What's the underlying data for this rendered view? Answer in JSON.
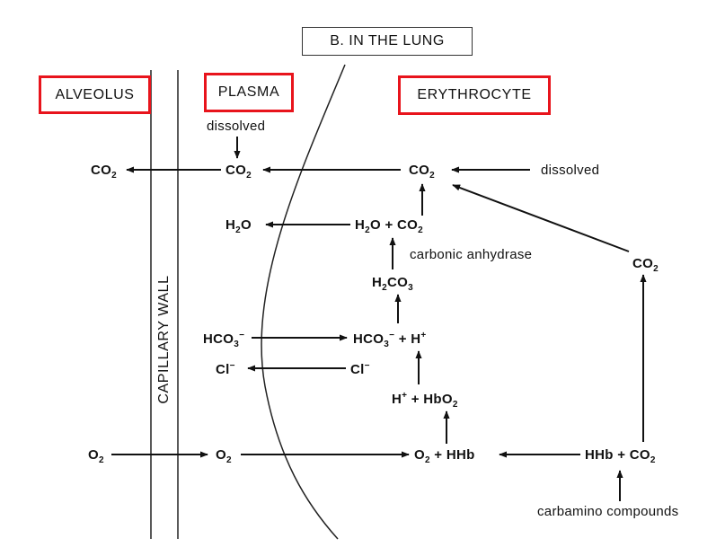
{
  "title": "B.  IN THE LUNG",
  "regions": {
    "alveolus": "ALVEOLUS",
    "plasma": "PLASMA",
    "erythrocyte": "ERYTHROCYTE",
    "capillary_wall": "CAPILLARY WALL"
  },
  "colors": {
    "highlight_border": "#e8141c",
    "ink": "#111111"
  },
  "species": {
    "co2_alveolus": "CO2",
    "co2_plasma": "CO2",
    "co2_rbc": "CO2",
    "h2o_plasma": "H2O",
    "h2o_co2_rbc": "H2O + CO2",
    "h2co3": "H2CO3",
    "hco3_plasma": "HCO3-",
    "hco3_h_rbc": "HCO3- + H+",
    "cl_plasma": "Cl-",
    "cl_rbc": "Cl-",
    "h_hbo2": "H+ + HbO2",
    "o2_alveolus": "O2",
    "o2_plasma": "O2",
    "o2_hhb": "O2 + HHb",
    "hhb_co2": "HHb + CO2",
    "co2_right": "CO2"
  },
  "notes": {
    "dissolved_plasma": "dissolved",
    "dissolved_rbc": "dissolved",
    "carbonic_anhydrase": "carbonic anhydrase",
    "carbamino": "carbamino compounds"
  }
}
